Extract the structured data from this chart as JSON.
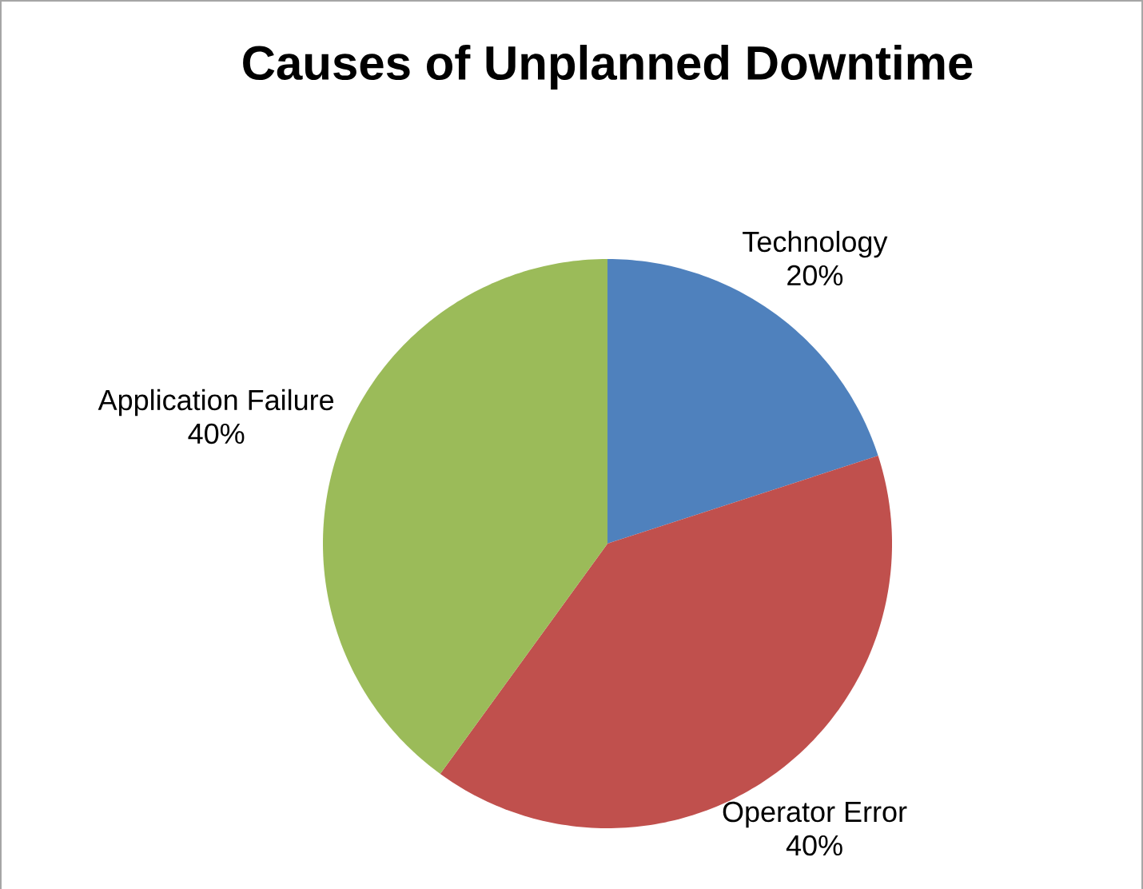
{
  "chart_data": {
    "type": "pie",
    "title": "Causes of Unplanned Downtime",
    "categories": [
      "Technology",
      "Operator Error",
      "Application Failure"
    ],
    "values": [
      20,
      40,
      40
    ],
    "value_labels": [
      "20%",
      "40%",
      "40%"
    ],
    "colors": [
      "#4f81bd",
      "#c0504d",
      "#9bbb59"
    ]
  }
}
